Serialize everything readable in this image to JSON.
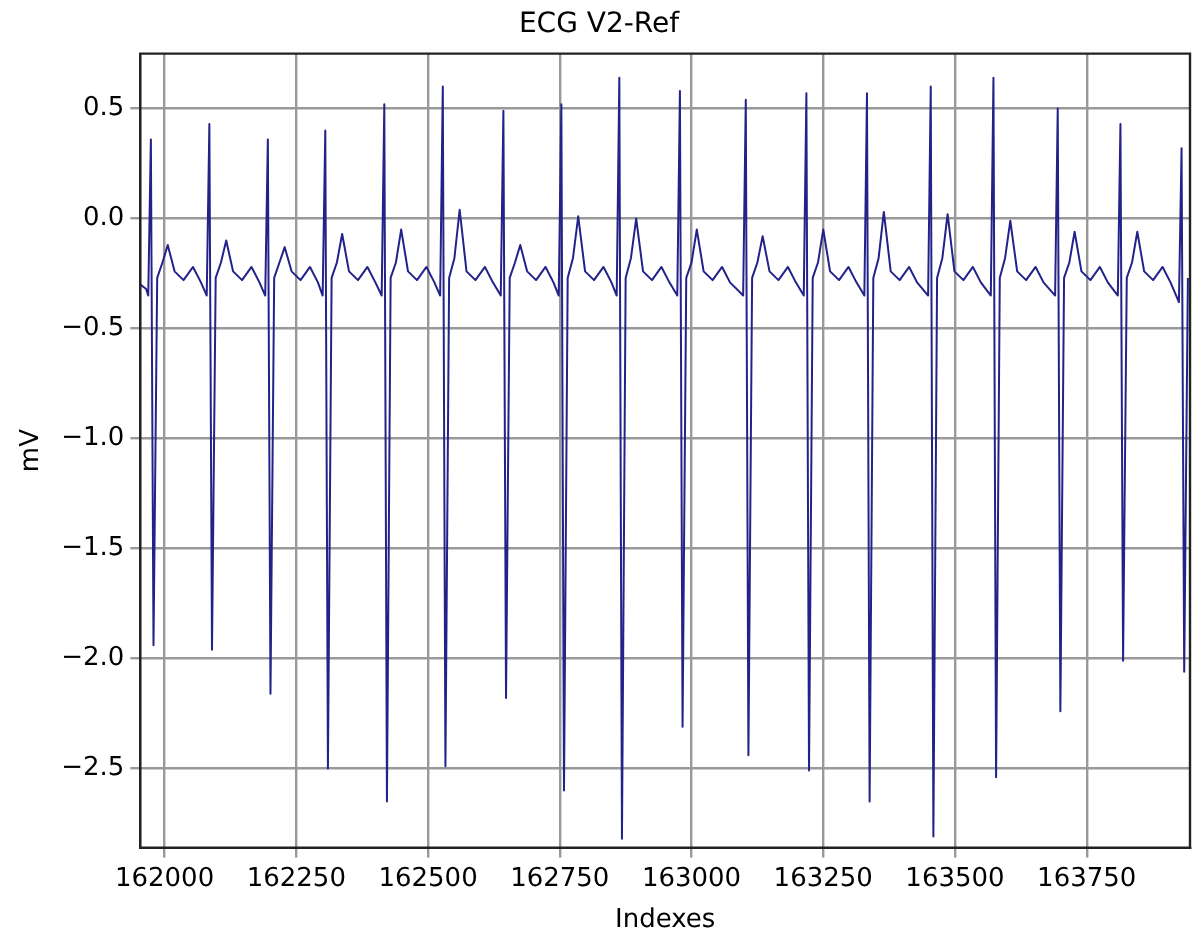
{
  "chart_data": {
    "type": "line",
    "title": "ECG V2-Ref",
    "xlabel": "Indexes",
    "ylabel": "mV",
    "xlim": [
      161954,
      163946
    ],
    "xticks": [
      162000,
      162250,
      162500,
      162750,
      163000,
      163250,
      163500,
      163750
    ],
    "ylim": [
      -2.86,
      0.75
    ],
    "yticks": [
      {
        "value": 0.5,
        "label": "0.5"
      },
      {
        "value": 0,
        "label": "0.0"
      },
      {
        "value": -0.5,
        "label": "−0.5"
      },
      {
        "value": -1,
        "label": "−1.0"
      },
      {
        "value": -1.5,
        "label": "−1.5"
      },
      {
        "value": -2,
        "label": "−2.0"
      },
      {
        "value": -2.5,
        "label": "−2.5"
      }
    ],
    "grid": true,
    "series": [
      {
        "color": "#22228a",
        "x": [
          161954,
          161965,
          161969,
          161974,
          161979,
          161986,
          161996,
          162006,
          162019,
          162036,
          162054,
          162069,
          162080,
          162085,
          162090,
          162097,
          162107,
          162117,
          162130,
          162147,
          162165,
          162180,
          162191,
          162196,
          162201,
          162208,
          162218,
          162228,
          162241,
          162258,
          162276,
          162291,
          162300,
          162305,
          162310,
          162317,
          162327,
          162337,
          162350,
          162367,
          162385,
          162400,
          162412,
          162417,
          162422,
          162429,
          162439,
          162449,
          162462,
          162479,
          162497,
          162512,
          162523,
          162528,
          162533,
          162540,
          162550,
          162560,
          162573,
          162590,
          162608,
          162623,
          162638,
          162643,
          162648,
          162655,
          162665,
          162675,
          162688,
          162705,
          162723,
          162738,
          162748,
          162753,
          162758,
          162765,
          162775,
          162785,
          162798,
          162815,
          162833,
          162848,
          162858,
          162863,
          162868,
          162875,
          162885,
          162895,
          162908,
          162925,
          162943,
          162958,
          162973,
          162978,
          162983,
          162990,
          163000,
          163010,
          163023,
          163040,
          163058,
          163073,
          163098,
          163103,
          163108,
          163115,
          163125,
          163135,
          163148,
          163165,
          163183,
          163198,
          163213,
          163218,
          163223,
          163230,
          163240,
          163250,
          163263,
          163280,
          163298,
          163313,
          163328,
          163333,
          163338,
          163345,
          163355,
          163365,
          163378,
          163395,
          163413,
          163428,
          163449,
          163454,
          163459,
          163466,
          163476,
          163486,
          163499,
          163516,
          163534,
          163549,
          163568,
          163573,
          163578,
          163585,
          163595,
          163605,
          163618,
          163635,
          163653,
          163668,
          163690,
          163695,
          163700,
          163707,
          163717,
          163727,
          163740,
          163757,
          163775,
          163790,
          163809,
          163814,
          163819,
          163826,
          163836,
          163846,
          163859,
          163876,
          163894,
          163909,
          163925,
          163930,
          163935,
          163942
        ],
        "values": [
          -0.3,
          -0.32,
          -0.35,
          0.36,
          -1.94,
          -0.27,
          -0.2,
          -0.12,
          -0.24,
          -0.28,
          -0.22,
          -0.29,
          -0.35,
          0.43,
          -1.96,
          -0.27,
          -0.2,
          -0.1,
          -0.24,
          -0.28,
          -0.22,
          -0.29,
          -0.35,
          0.36,
          -2.16,
          -0.27,
          -0.2,
          -0.13,
          -0.24,
          -0.28,
          -0.22,
          -0.29,
          -0.35,
          0.4,
          -2.5,
          -0.27,
          -0.2,
          -0.07,
          -0.24,
          -0.28,
          -0.22,
          -0.29,
          -0.35,
          0.52,
          -2.65,
          -0.27,
          -0.2,
          -0.05,
          -0.24,
          -0.28,
          -0.22,
          -0.29,
          -0.35,
          0.6,
          -2.49,
          -0.27,
          -0.18,
          0.04,
          -0.24,
          -0.28,
          -0.22,
          -0.29,
          -0.35,
          0.49,
          -2.18,
          -0.27,
          -0.2,
          -0.12,
          -0.24,
          -0.28,
          -0.22,
          -0.29,
          -0.35,
          0.52,
          -2.6,
          -0.27,
          -0.18,
          0.01,
          -0.24,
          -0.28,
          -0.22,
          -0.29,
          -0.35,
          0.64,
          -2.82,
          -0.27,
          -0.18,
          0,
          -0.24,
          -0.28,
          -0.22,
          -0.29,
          -0.35,
          0.58,
          -2.31,
          -0.27,
          -0.2,
          -0.05,
          -0.24,
          -0.28,
          -0.22,
          -0.29,
          -0.35,
          0.54,
          -2.44,
          -0.27,
          -0.2,
          -0.08,
          -0.24,
          -0.28,
          -0.22,
          -0.29,
          -0.35,
          0.57,
          -2.51,
          -0.27,
          -0.2,
          -0.05,
          -0.24,
          -0.28,
          -0.22,
          -0.29,
          -0.35,
          0.57,
          -2.65,
          -0.27,
          -0.18,
          0.03,
          -0.24,
          -0.28,
          -0.22,
          -0.29,
          -0.35,
          0.6,
          -2.81,
          -0.27,
          -0.18,
          0.02,
          -0.24,
          -0.28,
          -0.22,
          -0.29,
          -0.35,
          0.64,
          -2.54,
          -0.27,
          -0.18,
          -0.01,
          -0.24,
          -0.28,
          -0.22,
          -0.29,
          -0.35,
          0.5,
          -2.24,
          -0.27,
          -0.2,
          -0.06,
          -0.24,
          -0.28,
          -0.22,
          -0.29,
          -0.35,
          0.43,
          -2.01,
          -0.27,
          -0.2,
          -0.06,
          -0.24,
          -0.28,
          -0.22,
          -0.29,
          -0.38,
          0.32,
          -2.06,
          -0.27
        ]
      }
    ]
  }
}
